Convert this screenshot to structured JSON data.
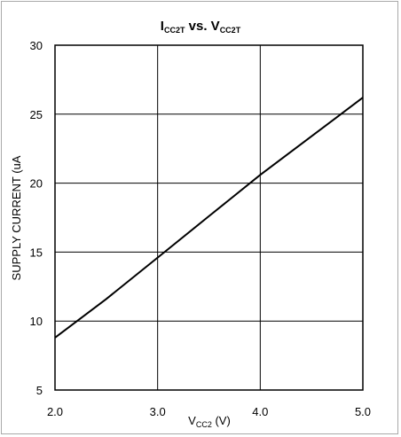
{
  "chart_data": {
    "type": "line",
    "title": {
      "main_1": "I",
      "sub_1": "CC2T",
      "mid": " vs. V",
      "sub_2": "CC2T"
    },
    "xlabel": {
      "main": "V",
      "sub": "CC2",
      "unit": " (V)"
    },
    "ylabel": "SUPPLY CURRENT (uA",
    "xlim": [
      2.0,
      5.0
    ],
    "ylim": [
      5,
      30
    ],
    "x_ticks": [
      "2.0",
      "3.0",
      "4.0",
      "5.0"
    ],
    "y_ticks": [
      "5",
      "10",
      "15",
      "20",
      "25",
      "30"
    ],
    "grid": true,
    "series": [
      {
        "x": [
          2.0,
          2.5,
          3.0,
          3.5,
          4.0,
          4.5,
          5.0
        ],
        "values": [
          8.8,
          11.6,
          14.6,
          17.6,
          20.6,
          23.4,
          26.2
        ]
      }
    ]
  }
}
